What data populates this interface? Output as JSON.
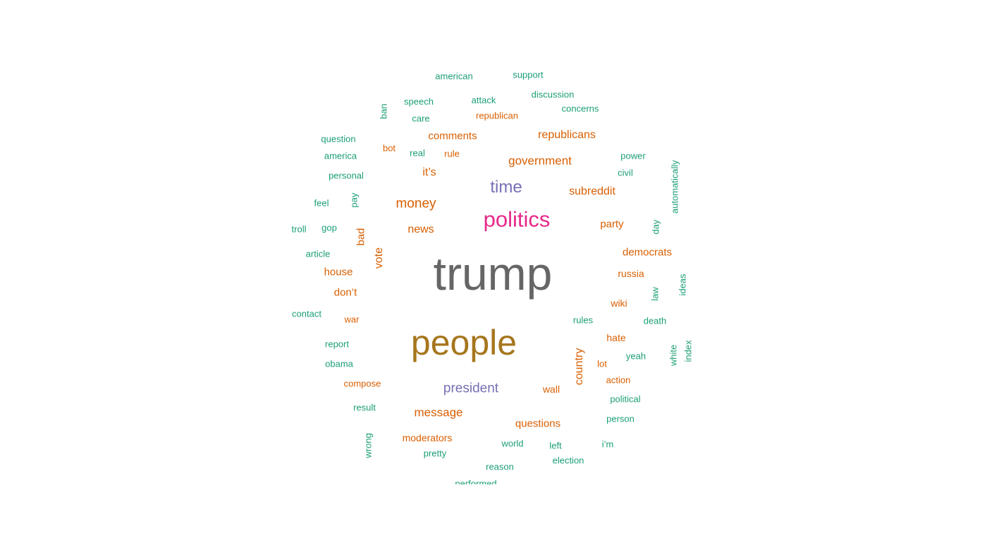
{
  "words": {
    "american": "american",
    "support": "support",
    "attack": "attack",
    "discussion": "discussion",
    "speech": "speech",
    "republican": "republican",
    "concerns": "concerns",
    "ban": "ban",
    "care": "care",
    "comments": "comments",
    "republicans": "republicans",
    "question": "question",
    "bot": "bot",
    "real": "real",
    "rule": "rule",
    "power": "power",
    "america": "america",
    "government": "government",
    "automatically": "automatically",
    "personal": "personal",
    "its": "it’s",
    "civil": "civil",
    "time": "time",
    "subreddit": "subreddit",
    "feel": "feel",
    "pay": "pay",
    "money": "money",
    "politics": "politics",
    "troll": "troll",
    "gop": "gop",
    "news": "news",
    "party": "party",
    "day": "day",
    "bad": "bad",
    "article": "article",
    "vote": "vote",
    "democrats": "democrats",
    "trump": "trump",
    "house": "house",
    "russia": "russia",
    "ideas": "ideas",
    "dont": "don’t",
    "law": "law",
    "contact": "contact",
    "wiki": "wiki",
    "war": "war",
    "rules": "rules",
    "death": "death",
    "report": "report",
    "people": "people",
    "hate": "hate",
    "white": "white",
    "index": "index",
    "country": "country",
    "yeah": "yeah",
    "obama": "obama",
    "lot": "lot",
    "compose": "compose",
    "action": "action",
    "president": "president",
    "wall": "wall",
    "political": "political",
    "result": "result",
    "message": "message",
    "questions": "questions",
    "person": "person",
    "moderators": "moderators",
    "world": "world",
    "left": "left",
    "im": "i’m",
    "wrong": "wrong",
    "pretty": "pretty",
    "reason": "reason",
    "election": "election",
    "performed": "performed"
  },
  "palette": {
    "teal": "#1b9e77",
    "orange": "#d95f02",
    "gold": "#a6761d",
    "purple": "#7570b3",
    "pink": "#e7298a",
    "grey": "#666666"
  }
}
